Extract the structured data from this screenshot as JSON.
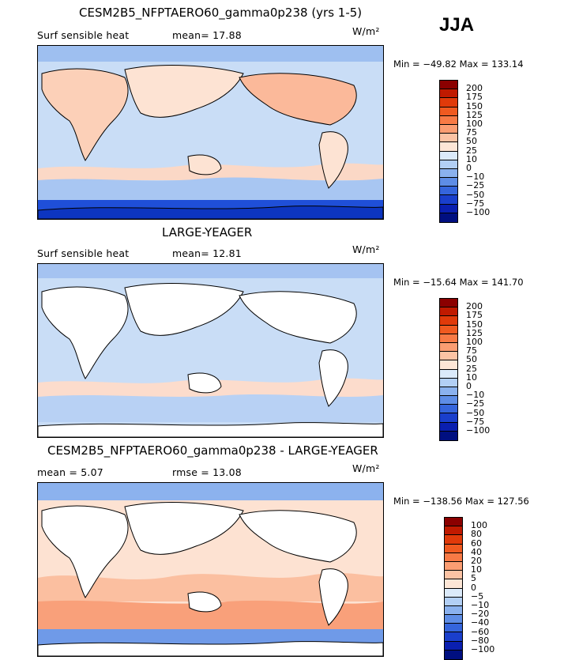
{
  "season": "JJA",
  "units": "W/m²",
  "panels": [
    {
      "title": "CESM2B5_NFPTAERO60_gamma0p238 (yrs 1-5)",
      "left_label": "Surf sensible heat",
      "right_label": "mean=   17.88",
      "minmax": "Min = −49.82  Max = 133.14",
      "ticks": [
        "200",
        "175",
        "150",
        "125",
        "100",
        "75",
        "50",
        "25",
        "10",
        "0",
        "−10",
        "−25",
        "−50",
        "−75",
        "−100"
      ],
      "colors": [
        "#8b0000",
        "#c01a00",
        "#e03a0a",
        "#f05a20",
        "#f87a45",
        "#fb9d72",
        "#fcc3a4",
        "#fde6d6",
        "#dbeafa",
        "#b2cff5",
        "#8ab1ee",
        "#5e8de6",
        "#3565dc",
        "#1a3fcc",
        "#0a1fb0",
        "#000f80"
      ]
    },
    {
      "title": "LARGE-YEAGER",
      "left_label": "Surf sensible heat",
      "right_label": "mean=   12.81",
      "minmax": "Min = −15.64  Max = 141.70",
      "ticks": [
        "200",
        "175",
        "150",
        "125",
        "100",
        "75",
        "50",
        "25",
        "10",
        "0",
        "−10",
        "−25",
        "−50",
        "−75",
        "−100"
      ],
      "colors": [
        "#8b0000",
        "#c01a00",
        "#e03a0a",
        "#f05a20",
        "#f87a45",
        "#fb9d72",
        "#fcc3a4",
        "#fde6d6",
        "#dbeafa",
        "#b2cff5",
        "#8ab1ee",
        "#5e8de6",
        "#3565dc",
        "#1a3fcc",
        "#0a1fb0",
        "#000f80"
      ]
    },
    {
      "title": "CESM2B5_NFPTAERO60_gamma0p238 - LARGE-YEAGER",
      "left_label": "mean =    5.07",
      "right_label": "rmse =   13.08",
      "minmax": "Min = −138.56  Max = 127.56",
      "ticks": [
        "100",
        "80",
        "60",
        "40",
        "20",
        "10",
        "5",
        "0",
        "−5",
        "−10",
        "−20",
        "−40",
        "−60",
        "−80",
        "−100"
      ],
      "colors": [
        "#8b0000",
        "#c01a00",
        "#e03a0a",
        "#f05a20",
        "#f87a45",
        "#fb9d72",
        "#fcc3a4",
        "#fde6d6",
        "#dbeafa",
        "#b2cff5",
        "#8ab1ee",
        "#5e8de6",
        "#3565dc",
        "#1a3fcc",
        "#0a1fb0",
        "#000f80"
      ]
    }
  ]
}
